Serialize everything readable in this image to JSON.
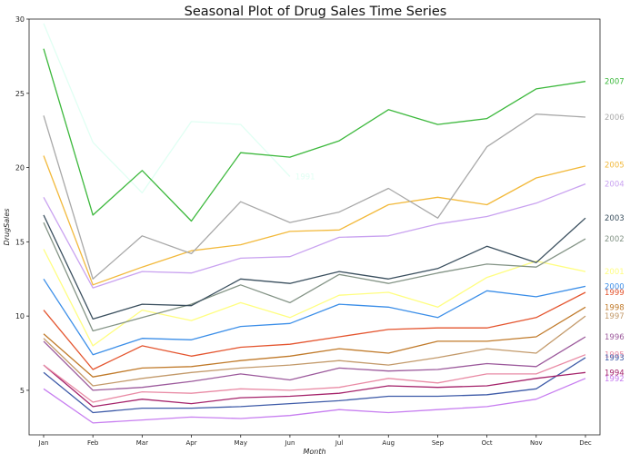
{
  "chart_data": {
    "type": "line",
    "title": "Seasonal Plot of Drug Sales Time Series",
    "xlabel": "Month",
    "ylabel": "DrugSales",
    "categories": [
      "Jan",
      "Feb",
      "Mar",
      "Apr",
      "May",
      "Jun",
      "Jul",
      "Aug",
      "Sep",
      "Oct",
      "Nov",
      "Dec"
    ],
    "ylim": [
      2,
      30
    ],
    "yticks": [
      5,
      10,
      15,
      20,
      25,
      30
    ],
    "grid": false,
    "legend": "none",
    "series": [
      {
        "name": "1991",
        "color": "#e0fff3",
        "values": [
          29.7,
          21.7,
          18.3,
          23.1,
          22.9,
          19.4,
          null,
          null,
          null,
          null,
          null,
          null
        ]
      },
      {
        "name": "1992",
        "color": "#c77ef0",
        "values": [
          5.1,
          2.8,
          3.0,
          3.2,
          3.1,
          3.3,
          3.7,
          3.5,
          3.7,
          3.9,
          4.4,
          5.8
        ]
      },
      {
        "name": "1993",
        "color": "#3e5ba8",
        "values": [
          6.2,
          3.5,
          3.8,
          3.8,
          3.9,
          4.1,
          4.3,
          4.6,
          4.6,
          4.7,
          5.1,
          7.2
        ]
      },
      {
        "name": "1994",
        "color": "#a4226a",
        "values": [
          6.7,
          3.9,
          4.4,
          4.1,
          4.5,
          4.6,
          4.8,
          5.3,
          5.2,
          5.3,
          5.8,
          6.2
        ]
      },
      {
        "name": "1995",
        "color": "#e98ba5",
        "values": [
          6.7,
          4.2,
          4.9,
          4.8,
          5.1,
          5.0,
          5.2,
          5.8,
          5.5,
          6.1,
          6.1,
          7.4
        ]
      },
      {
        "name": "1996",
        "color": "#9c5a9c",
        "values": [
          8.3,
          5.0,
          5.2,
          5.6,
          6.1,
          5.7,
          6.5,
          6.3,
          6.4,
          6.8,
          6.6,
          8.6
        ]
      },
      {
        "name": "1997",
        "color": "#c39a6b",
        "values": [
          8.5,
          5.3,
          5.8,
          6.2,
          6.5,
          6.7,
          7.0,
          6.7,
          7.2,
          7.8,
          7.5,
          10.0
        ]
      },
      {
        "name": "1998",
        "color": "#c07a2a",
        "values": [
          8.8,
          5.9,
          6.5,
          6.6,
          7.0,
          7.3,
          7.8,
          7.5,
          8.3,
          8.3,
          8.6,
          10.6
        ]
      },
      {
        "name": "1999",
        "color": "#e4552f",
        "values": [
          10.4,
          6.4,
          8.0,
          7.3,
          7.9,
          8.1,
          8.6,
          9.1,
          9.2,
          9.2,
          9.9,
          11.6
        ]
      },
      {
        "name": "2000",
        "color": "#3b8ee8",
        "values": [
          12.5,
          7.4,
          8.5,
          8.4,
          9.3,
          9.5,
          10.8,
          10.6,
          9.9,
          11.7,
          11.3,
          12.0
        ]
      },
      {
        "name": "2001",
        "color": "#fffe80",
        "values": [
          14.5,
          8.0,
          10.4,
          9.7,
          10.9,
          9.9,
          11.4,
          11.6,
          10.6,
          12.6,
          13.7,
          13.0
        ]
      },
      {
        "name": "2002",
        "color": "#849486",
        "values": [
          16.3,
          9.0,
          9.9,
          10.8,
          12.1,
          10.9,
          12.8,
          12.2,
          12.9,
          13.5,
          13.3,
          15.2
        ]
      },
      {
        "name": "2003",
        "color": "#3a4f5e",
        "values": [
          16.8,
          9.8,
          10.8,
          10.7,
          12.5,
          12.2,
          13.0,
          12.5,
          13.2,
          14.7,
          13.6,
          16.6
        ]
      },
      {
        "name": "2004",
        "color": "#c9a2f0",
        "values": [
          18.0,
          11.9,
          13.0,
          12.9,
          13.9,
          14.0,
          15.3,
          15.4,
          16.2,
          16.7,
          17.6,
          18.9
        ]
      },
      {
        "name": "2005",
        "color": "#f2b93b",
        "values": [
          20.8,
          12.1,
          13.3,
          14.4,
          14.8,
          15.7,
          15.8,
          17.5,
          18.0,
          17.5,
          19.3,
          20.1
        ]
      },
      {
        "name": "2006",
        "color": "#a8a8a8",
        "values": [
          23.5,
          12.5,
          15.4,
          14.2,
          17.7,
          16.3,
          17.0,
          18.6,
          16.6,
          21.4,
          23.6,
          23.4
        ]
      },
      {
        "name": "2007",
        "color": "#3cb83c",
        "values": [
          28.0,
          16.8,
          19.8,
          16.4,
          21.0,
          20.7,
          21.8,
          23.9,
          22.9,
          23.3,
          25.3,
          25.8
        ]
      }
    ],
    "end_labels": [
      {
        "text": "2007",
        "color": "#3cb83c",
        "y": 25.8
      },
      {
        "text": "2006",
        "color": "#a8a8a8",
        "y": 23.4
      },
      {
        "text": "2005",
        "color": "#f2b93b",
        "y": 20.2
      },
      {
        "text": "2004",
        "color": "#c9a2f0",
        "y": 18.9
      },
      {
        "text": "2003",
        "color": "#3a4f5e",
        "y": 16.6
      },
      {
        "text": "2002",
        "color": "#849486",
        "y": 15.2
      },
      {
        "text": "2001",
        "color": "#fffe80",
        "y": 13.0
      },
      {
        "text": "2000",
        "color": "#3b8ee8",
        "y": 12.0
      },
      {
        "text": "1999",
        "color": "#e4552f",
        "y": 11.6
      },
      {
        "text": "1998",
        "color": "#c07a2a",
        "y": 10.6
      },
      {
        "text": "1997",
        "color": "#c39a6b",
        "y": 10.0
      },
      {
        "text": "1996",
        "color": "#9c5a9c",
        "y": 8.6
      },
      {
        "text": "1995",
        "color": "#e98ba5",
        "y": 7.4
      },
      {
        "text": "1993",
        "color": "#3e5ba8",
        "y": 7.2
      },
      {
        "text": "1994",
        "color": "#a4226a",
        "y": 6.2
      },
      {
        "text": "1992",
        "color": "#c77ef0",
        "y": 5.8
      }
    ],
    "mid_label": {
      "text": "1991",
      "color": "#e0fff3",
      "x": "Jun",
      "y": 19.4
    }
  }
}
